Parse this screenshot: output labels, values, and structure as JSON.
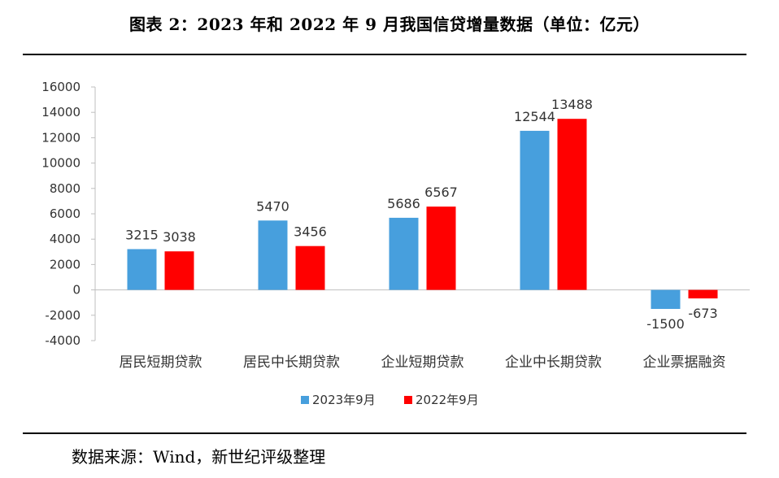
{
  "header": {
    "title": "图表 2：2023 年和 2022 年 9 月我国信贷增量数据（单位：亿元）"
  },
  "footer": {
    "source": "数据来源：Wind，新世纪评级整理"
  },
  "chart_data": {
    "type": "bar",
    "title": "图表 2：2023 年和 2022 年 9 月我国信贷增量数据（单位：亿元）",
    "xlabel": "",
    "ylabel": "",
    "categories": [
      "居民短期贷款",
      "居民中长期贷款",
      "企业短期贷款",
      "企业中长期贷款",
      "企业票据融资"
    ],
    "series": [
      {
        "name": "2023年9月",
        "values": [
          3215,
          5470,
          5686,
          12544,
          -1500
        ],
        "color": "#479FDD"
      },
      {
        "name": "2022年9月",
        "values": [
          3038,
          3456,
          6567,
          13488,
          -673
        ],
        "color": "#FF0000"
      }
    ],
    "ylim": [
      -4000,
      16000
    ],
    "yticks": [
      16000,
      14000,
      12000,
      10000,
      8000,
      6000,
      4000,
      2000,
      0,
      -2000,
      -4000
    ],
    "grid": false,
    "legend": "bottom",
    "data_labels": true
  }
}
